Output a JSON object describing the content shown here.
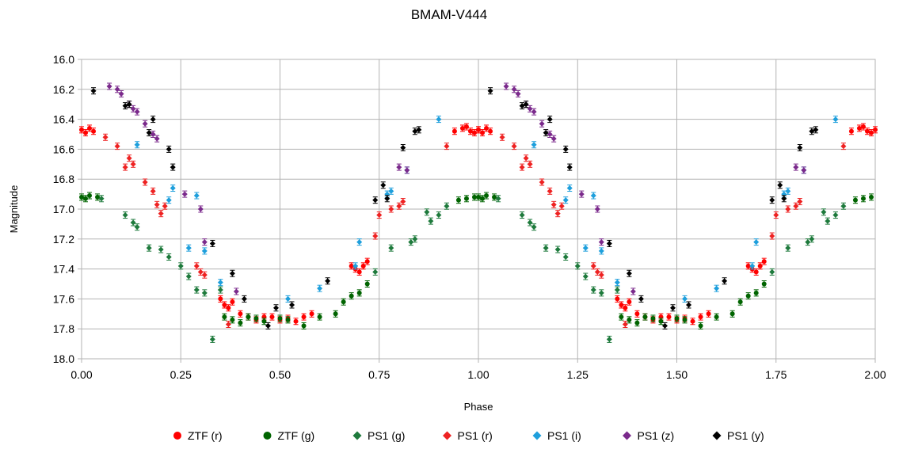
{
  "chart_data": {
    "type": "scatter",
    "title": "BMAM-V444",
    "xlabel": "Phase",
    "ylabel": "Magnitude",
    "xlim": [
      0.0,
      2.0
    ],
    "ylim": [
      16.0,
      18.0
    ],
    "y_inverted": true,
    "grid": true,
    "legend_position": "bottom",
    "x_ticks": [
      "0.00",
      "0.25",
      "0.50",
      "0.75",
      "1.00",
      "1.25",
      "1.50",
      "1.75",
      "2.00"
    ],
    "y_ticks": [
      "16.0",
      "16.2",
      "16.4",
      "16.6",
      "16.8",
      "17.0",
      "17.2",
      "17.4",
      "17.6",
      "17.8",
      "18.0"
    ],
    "note_period": "points for phase 0-1 are repeated at phase 1-2",
    "series": [
      {
        "name": "ZTF (r)",
        "color": "#ff0000",
        "marker": "circle",
        "points": [
          [
            0.0,
            16.47
          ],
          [
            0.01,
            16.49
          ],
          [
            0.02,
            16.46
          ],
          [
            0.03,
            16.48
          ],
          [
            0.35,
            17.6
          ],
          [
            0.36,
            17.64
          ],
          [
            0.37,
            17.66
          ],
          [
            0.38,
            17.62
          ],
          [
            0.4,
            17.7
          ],
          [
            0.42,
            17.72
          ],
          [
            0.44,
            17.74
          ],
          [
            0.46,
            17.72
          ],
          [
            0.48,
            17.72
          ],
          [
            0.5,
            17.74
          ],
          [
            0.52,
            17.73
          ],
          [
            0.54,
            17.75
          ],
          [
            0.56,
            17.72
          ],
          [
            0.58,
            17.7
          ],
          [
            0.68,
            17.38
          ],
          [
            0.69,
            17.4
          ],
          [
            0.7,
            17.42
          ],
          [
            0.71,
            17.38
          ],
          [
            0.72,
            17.35
          ],
          [
            0.94,
            16.48
          ],
          [
            0.96,
            16.46
          ],
          [
            0.97,
            16.45
          ],
          [
            0.98,
            16.48
          ],
          [
            0.99,
            16.49
          ],
          [
            1.0,
            16.47
          ]
        ]
      },
      {
        "name": "ZTF (g)",
        "color": "#006400",
        "marker": "circle",
        "points": [
          [
            0.0,
            16.92
          ],
          [
            0.01,
            16.93
          ],
          [
            0.02,
            16.91
          ],
          [
            0.04,
            16.92
          ],
          [
            0.36,
            17.72
          ],
          [
            0.38,
            17.74
          ],
          [
            0.4,
            17.76
          ],
          [
            0.42,
            17.72
          ],
          [
            0.44,
            17.73
          ],
          [
            0.46,
            17.75
          ],
          [
            0.5,
            17.73
          ],
          [
            0.52,
            17.74
          ],
          [
            0.56,
            17.78
          ],
          [
            0.6,
            17.72
          ],
          [
            0.64,
            17.7
          ],
          [
            0.66,
            17.62
          ],
          [
            0.68,
            17.58
          ],
          [
            0.7,
            17.56
          ],
          [
            0.72,
            17.5
          ],
          [
            0.95,
            16.94
          ],
          [
            0.97,
            16.93
          ],
          [
            0.99,
            16.92
          ]
        ]
      },
      {
        "name": "PS1 (g)",
        "color": "#1e7a3c",
        "marker": "diamond",
        "points": [
          [
            0.05,
            16.93
          ],
          [
            0.11,
            17.04
          ],
          [
            0.13,
            17.09
          ],
          [
            0.14,
            17.12
          ],
          [
            0.17,
            17.26
          ],
          [
            0.2,
            17.27
          ],
          [
            0.22,
            17.32
          ],
          [
            0.25,
            17.38
          ],
          [
            0.27,
            17.45
          ],
          [
            0.29,
            17.54
          ],
          [
            0.31,
            17.56
          ],
          [
            0.33,
            17.87
          ],
          [
            0.35,
            17.54
          ],
          [
            0.74,
            17.42
          ],
          [
            0.78,
            17.26
          ],
          [
            0.83,
            17.22
          ],
          [
            0.84,
            17.2
          ],
          [
            0.87,
            17.02
          ],
          [
            0.88,
            17.08
          ],
          [
            0.9,
            17.04
          ],
          [
            0.92,
            16.98
          ]
        ]
      },
      {
        "name": "PS1 (r)",
        "color": "#ee2222",
        "marker": "diamond",
        "points": [
          [
            0.06,
            16.52
          ],
          [
            0.09,
            16.58
          ],
          [
            0.11,
            16.72
          ],
          [
            0.12,
            16.66
          ],
          [
            0.13,
            16.7
          ],
          [
            0.16,
            16.82
          ],
          [
            0.18,
            16.88
          ],
          [
            0.19,
            16.97
          ],
          [
            0.2,
            17.03
          ],
          [
            0.21,
            16.98
          ],
          [
            0.29,
            17.38
          ],
          [
            0.3,
            17.42
          ],
          [
            0.31,
            17.44
          ],
          [
            0.37,
            17.77
          ],
          [
            0.74,
            17.18
          ],
          [
            0.75,
            17.04
          ],
          [
            0.78,
            17.0
          ],
          [
            0.8,
            16.98
          ],
          [
            0.81,
            16.95
          ],
          [
            0.92,
            16.58
          ]
        ]
      },
      {
        "name": "PS1 (i)",
        "color": "#1e9fdc",
        "marker": "diamond",
        "points": [
          [
            0.14,
            16.57
          ],
          [
            0.22,
            16.94
          ],
          [
            0.23,
            16.86
          ],
          [
            0.29,
            16.91
          ],
          [
            0.31,
            17.28
          ],
          [
            0.27,
            17.26
          ],
          [
            0.35,
            17.49
          ],
          [
            0.52,
            17.6
          ],
          [
            0.6,
            17.53
          ],
          [
            0.69,
            17.38
          ],
          [
            0.7,
            17.22
          ],
          [
            0.77,
            16.9
          ],
          [
            0.78,
            16.88
          ],
          [
            0.82,
            16.74
          ],
          [
            0.9,
            16.4
          ]
        ]
      },
      {
        "name": "PS1 (z)",
        "color": "#7b2a8c",
        "marker": "diamond",
        "points": [
          [
            0.07,
            16.18
          ],
          [
            0.09,
            16.2
          ],
          [
            0.1,
            16.23
          ],
          [
            0.12,
            16.3
          ],
          [
            0.13,
            16.33
          ],
          [
            0.14,
            16.35
          ],
          [
            0.16,
            16.43
          ],
          [
            0.18,
            16.5
          ],
          [
            0.19,
            16.53
          ],
          [
            0.26,
            16.9
          ],
          [
            0.3,
            17.0
          ],
          [
            0.31,
            17.22
          ],
          [
            0.39,
            17.55
          ],
          [
            0.8,
            16.72
          ],
          [
            0.82,
            16.74
          ]
        ]
      },
      {
        "name": "PS1 (y)",
        "color": "#000000",
        "marker": "diamond",
        "points": [
          [
            0.03,
            16.21
          ],
          [
            0.11,
            16.31
          ],
          [
            0.12,
            16.3
          ],
          [
            0.17,
            16.49
          ],
          [
            0.18,
            16.4
          ],
          [
            0.22,
            16.6
          ],
          [
            0.23,
            16.72
          ],
          [
            0.33,
            17.23
          ],
          [
            0.38,
            17.43
          ],
          [
            0.41,
            17.6
          ],
          [
            0.47,
            17.78
          ],
          [
            0.49,
            17.66
          ],
          [
            0.53,
            17.64
          ],
          [
            0.62,
            17.48
          ],
          [
            0.74,
            16.94
          ],
          [
            0.76,
            16.84
          ],
          [
            0.77,
            16.93
          ],
          [
            0.81,
            16.59
          ],
          [
            0.84,
            16.48
          ],
          [
            0.85,
            16.47
          ]
        ]
      }
    ]
  }
}
